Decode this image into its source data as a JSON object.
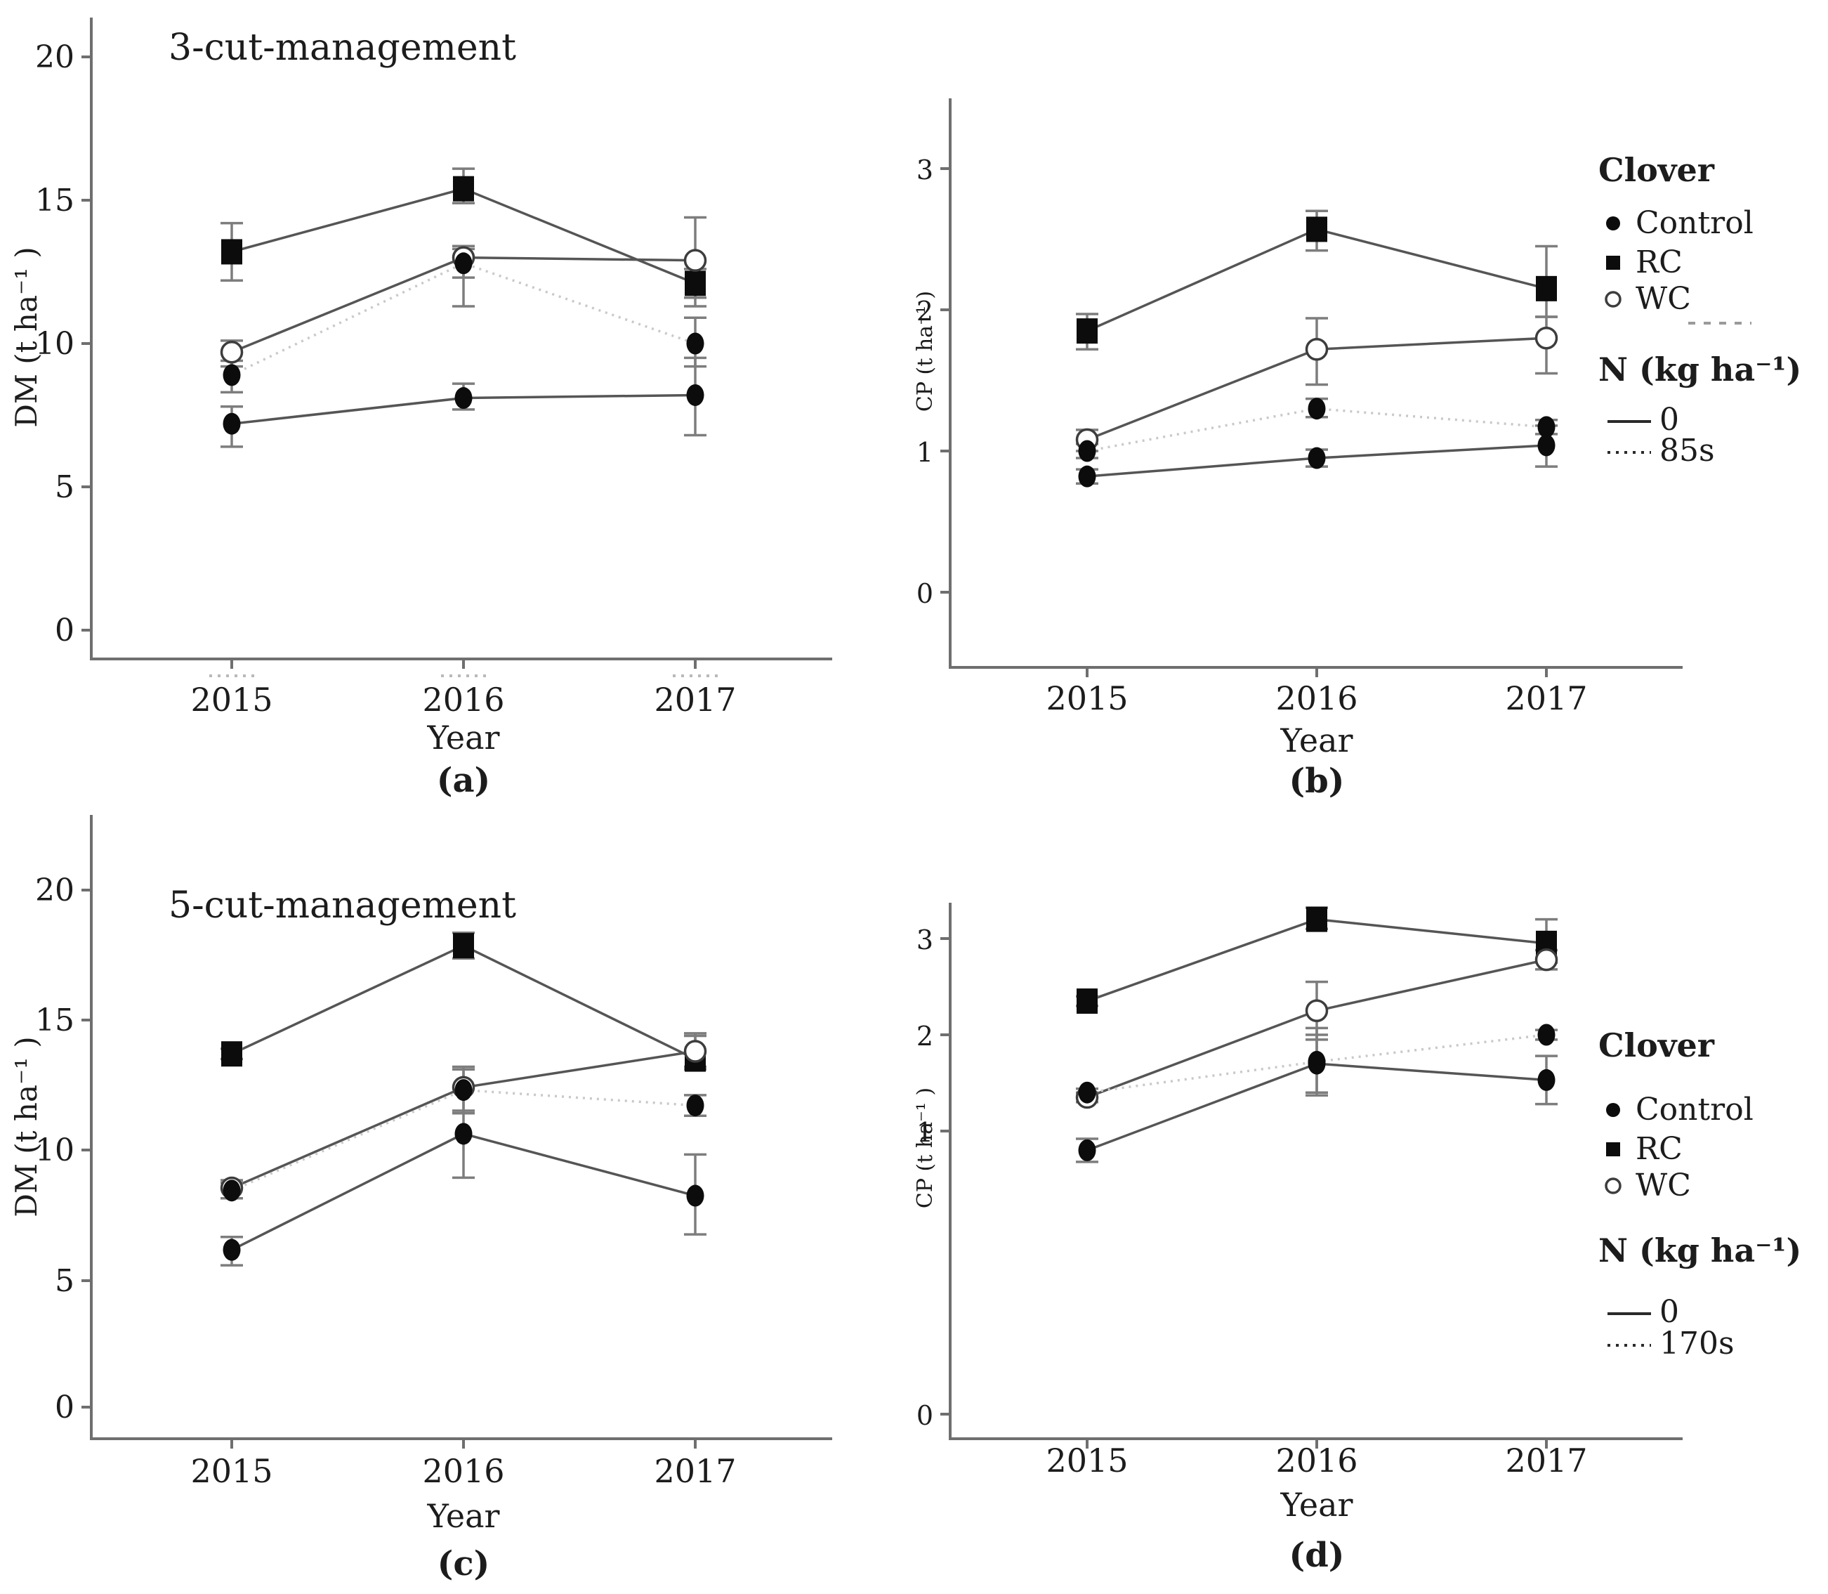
{
  "figure": {
    "background": "#ffffff",
    "text_color": "#1c1c1c",
    "axis_color": "#6f6f6f",
    "solid_line_color": "#555555",
    "dotted_line_color": "#c9c9c9",
    "marker_color": "#0c0c0c"
  },
  "chart_data": [
    {
      "id": "a",
      "type": "line",
      "letter": "(a)",
      "title": "3-cut-management",
      "ylabel": "DM (t ha⁻¹ )",
      "xlabel": "Year",
      "categories": [
        "2015",
        "2016",
        "2017"
      ],
      "yticks": [
        "0",
        "5",
        "10",
        "15",
        "20"
      ],
      "ylim": [
        0,
        21
      ],
      "grid": false,
      "series": [
        {
          "name": "RC",
          "clover": "RC",
          "n_rate": "0",
          "line": "solid",
          "marker": "filled-square",
          "values": [
            13.2,
            15.4,
            12.1
          ],
          "err_lo": [
            1.0,
            0.5,
            0.8
          ],
          "err_hi": [
            1.0,
            0.7,
            0.5
          ]
        },
        {
          "name": "WC",
          "clover": "WC",
          "n_rate": "0",
          "line": "solid",
          "marker": "open-circle",
          "values": [
            9.7,
            13.0,
            12.9
          ],
          "err_lo": [
            0.5,
            1.7,
            1.3
          ],
          "err_hi": [
            0.4,
            0.4,
            1.5
          ]
        },
        {
          "name": "Control 85s",
          "clover": "Control",
          "n_rate": "85s",
          "line": "dotted",
          "marker": "filled-circle",
          "values": [
            8.9,
            12.8,
            10.0
          ],
          "err_lo": [
            0.6,
            0.5,
            0.8
          ],
          "err_hi": [
            0.5,
            0.5,
            0.9
          ]
        },
        {
          "name": "Control 0",
          "clover": "Control",
          "n_rate": "0",
          "line": "solid",
          "marker": "filled-circle",
          "values": [
            7.2,
            8.1,
            8.2
          ],
          "err_lo": [
            0.8,
            0.4,
            1.4
          ],
          "err_hi": [
            0.6,
            0.5,
            1.3
          ]
        }
      ]
    },
    {
      "id": "b",
      "type": "line",
      "letter": "(b)",
      "title": "",
      "ylabel": "CP (t ha⁻¹ )",
      "xlabel": "Year",
      "categories": [
        "2015",
        "2016",
        "2017"
      ],
      "yticks": [
        "0",
        "1",
        "2",
        "3"
      ],
      "ylim": [
        0,
        3.5
      ],
      "grid": false,
      "legend": {
        "header1": "Clover",
        "items": [
          {
            "marker": "filled-circle",
            "label": "Control"
          },
          {
            "marker": "filled-square",
            "label": "RC"
          },
          {
            "marker": "open-circle",
            "label": "WC"
          }
        ],
        "wc_dash_artifact": true,
        "header2": "N (kg ha⁻¹)",
        "n_items": [
          {
            "line": "solid",
            "label": "0"
          },
          {
            "line": "dotted",
            "label": "85s"
          }
        ]
      },
      "series": [
        {
          "name": "RC",
          "clover": "RC",
          "n_rate": "0",
          "line": "solid",
          "marker": "filled-square",
          "values": [
            1.85,
            2.57,
            2.15
          ],
          "err_lo": [
            0.13,
            0.15,
            0.2
          ],
          "err_hi": [
            0.12,
            0.13,
            0.3
          ]
        },
        {
          "name": "WC",
          "clover": "WC",
          "n_rate": "0",
          "line": "solid",
          "marker": "open-circle",
          "values": [
            1.08,
            1.72,
            1.8
          ],
          "err_lo": [
            0.08,
            0.25,
            0.25
          ],
          "err_hi": [
            0.07,
            0.22,
            0.15
          ]
        },
        {
          "name": "Control 85s",
          "clover": "Control",
          "n_rate": "85s",
          "line": "dotted",
          "marker": "filled-circle",
          "values": [
            1.0,
            1.3,
            1.17
          ],
          "err_lo": [
            0.05,
            0.06,
            0.05
          ],
          "err_hi": [
            0.05,
            0.07,
            0.05
          ]
        },
        {
          "name": "Control 0",
          "clover": "Control",
          "n_rate": "0",
          "line": "solid",
          "marker": "filled-circle",
          "values": [
            0.82,
            0.95,
            1.04
          ],
          "err_lo": [
            0.05,
            0.06,
            0.15
          ],
          "err_hi": [
            0.05,
            0.06,
            0.14
          ]
        }
      ]
    },
    {
      "id": "c",
      "type": "line",
      "letter": "(c)",
      "title": "5-cut-management",
      "ylabel": "DM (t ha⁻¹ )",
      "xlabel": "Year",
      "categories": [
        "2015",
        "2016",
        "2017"
      ],
      "yticks": [
        "0",
        "5",
        "10",
        "15",
        "20"
      ],
      "ylim": [
        0,
        21
      ],
      "grid": false,
      "series": [
        {
          "name": "RC",
          "clover": "RC",
          "n_rate": "0",
          "line": "solid",
          "marker": "filled-square",
          "values": [
            13.7,
            17.9,
            13.5
          ],
          "err_lo": [
            0.2,
            0.5,
            0.4
          ],
          "err_hi": [
            0.2,
            0.5,
            0.9
          ]
        },
        {
          "name": "WC",
          "clover": "WC",
          "n_rate": "0",
          "line": "solid",
          "marker": "open-circle",
          "values": [
            8.5,
            12.4,
            13.8
          ],
          "err_lo": [
            0.4,
            1.0,
            0.6
          ],
          "err_hi": [
            0.3,
            0.8,
            0.7
          ]
        },
        {
          "name": "Control 170s",
          "clover": "Control",
          "n_rate": "170s",
          "line": "dotted",
          "marker": "filled-circle",
          "values": [
            8.4,
            12.3,
            11.7
          ],
          "err_lo": [
            0.3,
            0.9,
            0.4
          ],
          "err_hi": [
            0.3,
            0.8,
            0.4
          ]
        },
        {
          "name": "Control 0",
          "clover": "Control",
          "n_rate": "0",
          "line": "solid",
          "marker": "filled-circle",
          "values": [
            6.1,
            10.6,
            8.2
          ],
          "err_lo": [
            0.6,
            1.7,
            1.5
          ],
          "err_hi": [
            0.5,
            0.9,
            1.6
          ]
        }
      ]
    },
    {
      "id": "d",
      "type": "line",
      "letter": "(d)",
      "title": "",
      "ylabel": "CP (t ha⁻¹ )",
      "xlabel": "Year",
      "categories": [
        "2015",
        "2016",
        "2017"
      ],
      "yticks": [
        "0",
        "1",
        "2",
        "3"
      ],
      "ylim": [
        0,
        3.5
      ],
      "grid": false,
      "legend": {
        "header1": "Clover",
        "items": [
          {
            "marker": "filled-circle",
            "label": "Control"
          },
          {
            "marker": "filled-square",
            "label": "RC"
          },
          {
            "marker": "open-circle",
            "label": "WC"
          }
        ],
        "wc_dash_artifact": false,
        "header2": "N (kg ha⁻¹)",
        "n_items": [
          {
            "line": "solid",
            "label": "0"
          },
          {
            "line": "dotted",
            "label": "170s"
          }
        ]
      },
      "series": [
        {
          "name": "RC",
          "clover": "RC",
          "n_rate": "0",
          "line": "solid",
          "marker": "filled-square",
          "values": [
            2.35,
            3.2,
            2.95
          ],
          "err_lo": [
            0.05,
            0.1,
            0.2
          ],
          "err_hi": [
            0.05,
            0.12,
            0.25
          ]
        },
        {
          "name": "WC",
          "clover": "WC",
          "n_rate": "0",
          "line": "solid",
          "marker": "open-circle",
          "values": [
            1.35,
            2.25,
            2.78
          ],
          "err_lo": [
            0.05,
            0.3,
            0.1
          ],
          "err_hi": [
            0.05,
            0.3,
            0.1
          ]
        },
        {
          "name": "Control 170s",
          "clover": "Control",
          "n_rate": "170s",
          "line": "dotted",
          "marker": "filled-circle",
          "values": [
            1.4,
            1.72,
            2.0
          ],
          "err_lo": [
            0.04,
            0.35,
            0.05
          ],
          "err_hi": [
            0.04,
            0.35,
            0.05
          ]
        },
        {
          "name": "Control 0",
          "clover": "Control",
          "n_rate": "0",
          "line": "solid",
          "marker": "filled-circle",
          "values": [
            0.8,
            1.7,
            1.53
          ],
          "err_lo": [
            0.12,
            0.3,
            0.25
          ],
          "err_hi": [
            0.12,
            0.3,
            0.25
          ]
        }
      ]
    }
  ]
}
